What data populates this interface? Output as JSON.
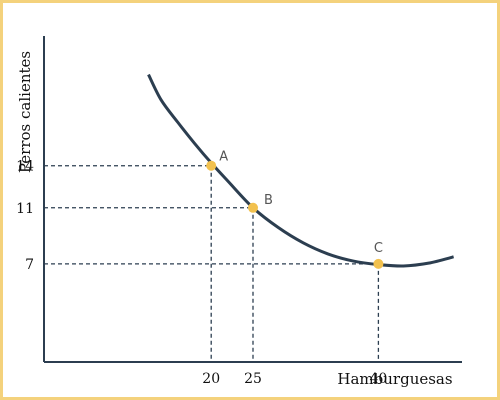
{
  "chart_data": {
    "type": "line",
    "title": "",
    "xlabel": "Hamburguesas",
    "ylabel": "Perros calientes",
    "xlim": [
      0,
      50
    ],
    "ylim": [
      0,
      25
    ],
    "grid": false,
    "legend": "none",
    "x_ticks": [
      20,
      25,
      40
    ],
    "y_ticks": [
      14,
      11,
      7
    ],
    "series": [
      {
        "values": [
          [
            12.5,
            20.5
          ],
          [
            14,
            18.7
          ],
          [
            16,
            17.1
          ],
          [
            18,
            15.6
          ],
          [
            20,
            14.2
          ],
          [
            22,
            12.9
          ],
          [
            25,
            11
          ],
          [
            28,
            9.6
          ],
          [
            31,
            8.5
          ],
          [
            34,
            7.7
          ],
          [
            37,
            7.2
          ],
          [
            40,
            6.95
          ],
          [
            43,
            6.85
          ],
          [
            46,
            7.05
          ],
          [
            49,
            7.5
          ]
        ]
      }
    ],
    "points": [
      {
        "label": "A",
        "x": 20,
        "y": 14
      },
      {
        "label": "B",
        "x": 25,
        "y": 11
      },
      {
        "label": "C",
        "x": 40,
        "y": 7
      }
    ],
    "colors": {
      "curve": "#2c3e50",
      "points": "#f2c14e",
      "frame": "#f4d27c",
      "axis": "#2c3e50",
      "text": "#111111",
      "point_label": "#555555"
    }
  }
}
